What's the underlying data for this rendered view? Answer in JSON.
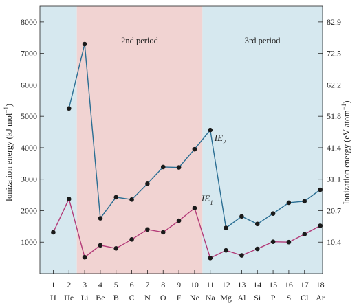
{
  "chart_data": {
    "type": "line",
    "left_axis": {
      "label": "Ionization energy (kJ mol",
      "label_sup": "−1",
      "label_end": ")",
      "ticks": [
        1000,
        2000,
        3000,
        4000,
        5000,
        6000,
        7000,
        8000
      ],
      "ylim": [
        0,
        8500
      ]
    },
    "right_axis": {
      "label": "Ionization energy (eV atom",
      "label_sup": "−1",
      "label_end": ")",
      "ticks": [
        "10.4",
        "20.7",
        "31.1",
        "41.4",
        "51.8",
        "62.2",
        "72.5",
        "82.9"
      ]
    },
    "x": [
      1,
      2,
      3,
      4,
      5,
      6,
      7,
      8,
      9,
      10,
      11,
      12,
      13,
      14,
      15,
      16,
      17,
      18
    ],
    "symbols": [
      "H",
      "He",
      "Li",
      "Be",
      "B",
      "C",
      "N",
      "O",
      "F",
      "Ne",
      "Na",
      "Mg",
      "Al",
      "Si",
      "P",
      "S",
      "Cl",
      "Ar"
    ],
    "xlim": [
      0.15,
      18.15
    ],
    "bands": [
      {
        "label": "",
        "from": 0.15,
        "to": 2.5,
        "color": "#d6e8ef"
      },
      {
        "label": "2nd period",
        "from": 2.5,
        "to": 10.5,
        "color": "#f1d3d2"
      },
      {
        "label": "3rd period",
        "from": 10.5,
        "to": 18.15,
        "color": "#d6e8ef"
      }
    ],
    "series": [
      {
        "name": "IE",
        "sub": "1",
        "color": "#b33a78",
        "x": [
          1,
          2,
          3,
          4,
          5,
          6,
          7,
          8,
          9,
          10,
          11,
          12,
          13,
          14,
          15,
          16,
          17,
          18
        ],
        "values": [
          1312,
          2372,
          520,
          900,
          801,
          1086,
          1402,
          1314,
          1681,
          2081,
          496,
          738,
          578,
          786,
          1012,
          1000,
          1251,
          1521
        ]
      },
      {
        "name": "IE",
        "sub": "2",
        "color": "#2a6e93",
        "x": [
          2,
          3,
          4,
          5,
          6,
          7,
          8,
          9,
          10,
          11,
          12,
          13,
          14,
          15,
          16,
          17,
          18
        ],
        "values": [
          5250,
          7298,
          1757,
          2427,
          2353,
          2856,
          3388,
          3374,
          3952,
          4562,
          1451,
          1817,
          1577,
          1907,
          2252,
          2298,
          2666
        ]
      }
    ],
    "grid": false
  }
}
